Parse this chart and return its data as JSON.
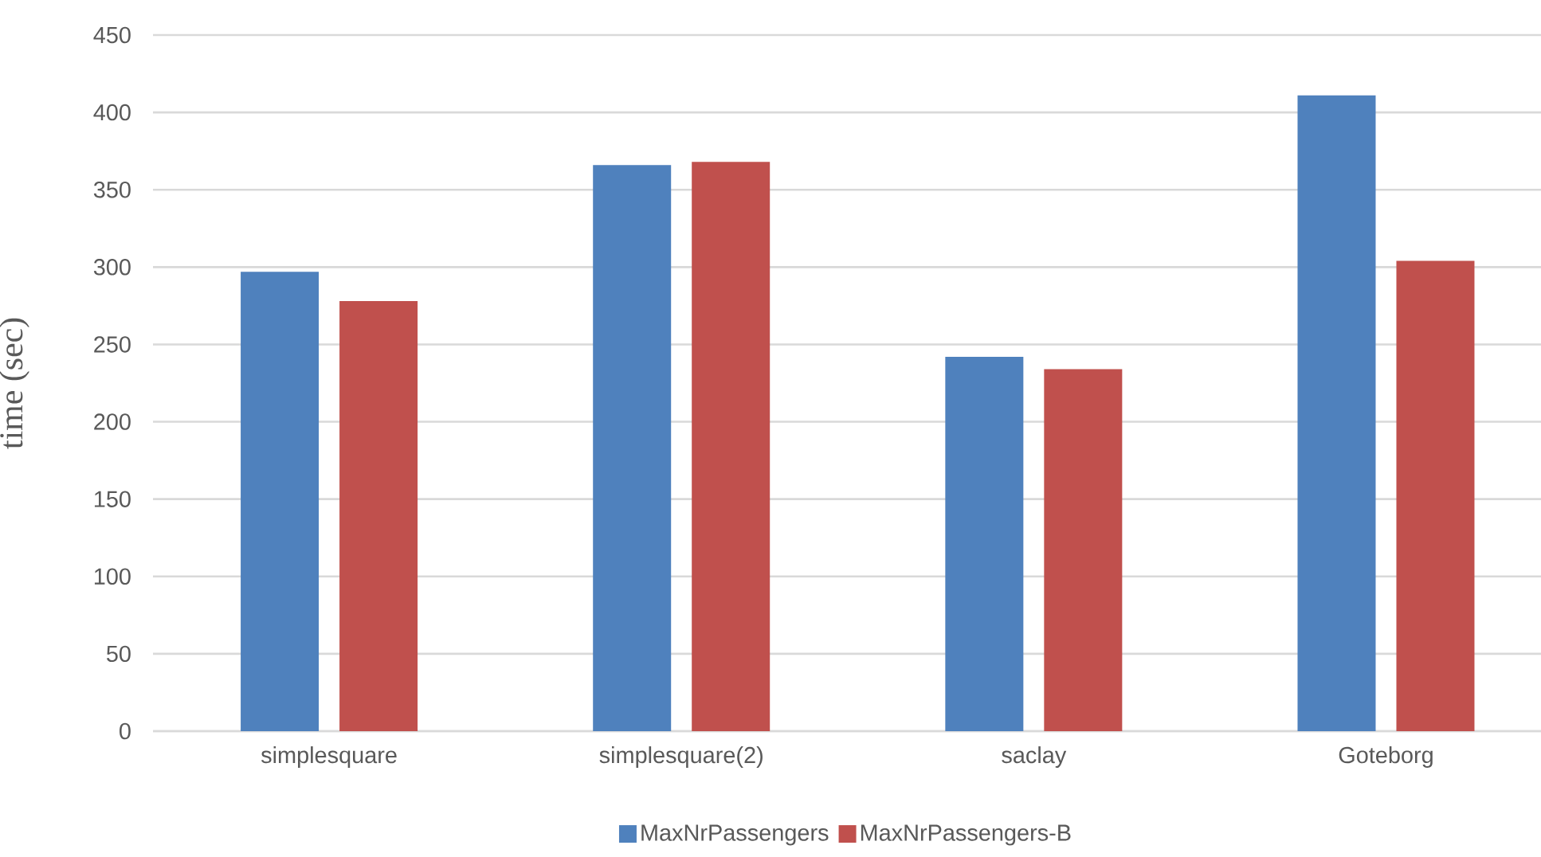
{
  "chart_data": {
    "type": "bar",
    "ylabel": "time (sec)",
    "categories": [
      "simplesquare",
      "simplesquare(2)",
      "saclay",
      "Goteborg"
    ],
    "series": [
      {
        "name": "MaxNrPassengers",
        "color": "#4f81bd",
        "values": [
          297,
          366,
          242,
          411
        ]
      },
      {
        "name": "MaxNrPassengers-B",
        "color": "#c0504d",
        "values": [
          278,
          368,
          234,
          304
        ]
      }
    ],
    "ylim": [
      0,
      450
    ],
    "yticks": [
      0,
      50,
      100,
      150,
      200,
      250,
      300,
      350,
      400,
      450
    ],
    "grid": "y",
    "legend": "bottom"
  }
}
